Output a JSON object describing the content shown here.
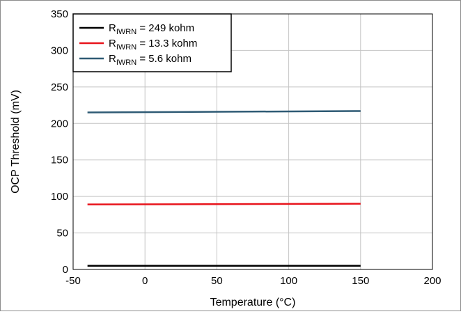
{
  "chart_data": {
    "type": "line",
    "xlabel": "Temperature (°C)",
    "ylabel": "OCP Threshold (mV)",
    "xlim": [
      -50,
      200
    ],
    "ylim": [
      0,
      350
    ],
    "xticks": [
      "-50",
      "0",
      "50",
      "100",
      "150",
      "200"
    ],
    "yticks": [
      "0",
      "50",
      "100",
      "150",
      "200",
      "250",
      "300",
      "350"
    ],
    "grid": true,
    "legend_position": "top-left",
    "series": [
      {
        "name_main": "R",
        "name_sub": "IWRN",
        "name_rest": " = 249 kohm",
        "color": "#000000",
        "x": [
          -40,
          150
        ],
        "y": [
          5,
          5
        ]
      },
      {
        "name_main": "R",
        "name_sub": "IWRN",
        "name_rest": " = 13.3 kohm",
        "color": "#e8141c",
        "x": [
          -40,
          150
        ],
        "y": [
          89,
          90
        ]
      },
      {
        "name_main": "R",
        "name_sub": "IWRN",
        "name_rest": " = 5.6 kohm",
        "color": "#2e5a74",
        "x": [
          -40,
          150
        ],
        "y": [
          215,
          217
        ]
      }
    ]
  }
}
